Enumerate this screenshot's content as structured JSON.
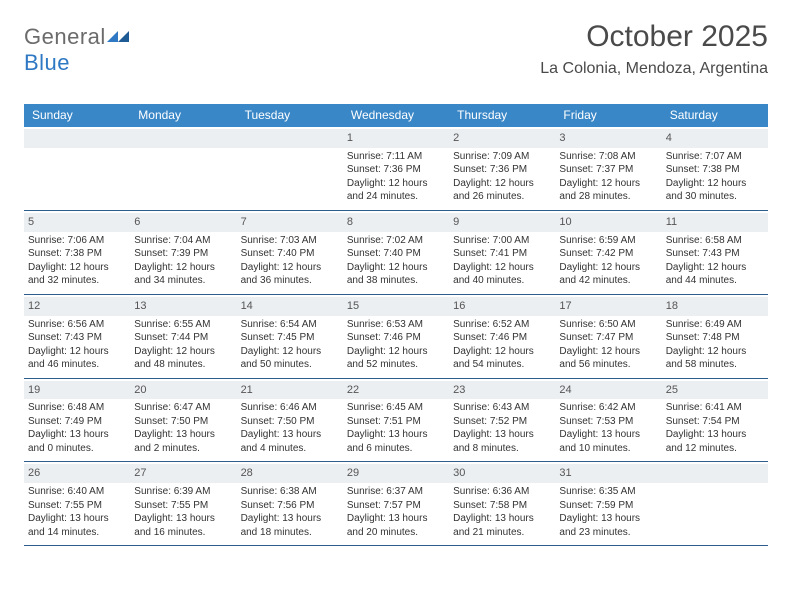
{
  "logo": {
    "text_gray": "General",
    "text_blue": "Blue"
  },
  "header": {
    "title": "October 2025",
    "subtitle": "La Colonia, Mendoza, Argentina"
  },
  "colors": {
    "header_bg": "#3a87c7",
    "header_text": "#ffffff",
    "daynum_bg": "#eceff2",
    "week_border": "#2d5d8a",
    "logo_gray": "#6b6b6b",
    "logo_blue": "#2f78c4"
  },
  "days_of_week": [
    "Sunday",
    "Monday",
    "Tuesday",
    "Wednesday",
    "Thursday",
    "Friday",
    "Saturday"
  ],
  "weeks": [
    [
      {
        "n": "",
        "l": []
      },
      {
        "n": "",
        "l": []
      },
      {
        "n": "",
        "l": []
      },
      {
        "n": "1",
        "l": [
          "Sunrise: 7:11 AM",
          "Sunset: 7:36 PM",
          "Daylight: 12 hours",
          "and 24 minutes."
        ]
      },
      {
        "n": "2",
        "l": [
          "Sunrise: 7:09 AM",
          "Sunset: 7:36 PM",
          "Daylight: 12 hours",
          "and 26 minutes."
        ]
      },
      {
        "n": "3",
        "l": [
          "Sunrise: 7:08 AM",
          "Sunset: 7:37 PM",
          "Daylight: 12 hours",
          "and 28 minutes."
        ]
      },
      {
        "n": "4",
        "l": [
          "Sunrise: 7:07 AM",
          "Sunset: 7:38 PM",
          "Daylight: 12 hours",
          "and 30 minutes."
        ]
      }
    ],
    [
      {
        "n": "5",
        "l": [
          "Sunrise: 7:06 AM",
          "Sunset: 7:38 PM",
          "Daylight: 12 hours",
          "and 32 minutes."
        ]
      },
      {
        "n": "6",
        "l": [
          "Sunrise: 7:04 AM",
          "Sunset: 7:39 PM",
          "Daylight: 12 hours",
          "and 34 minutes."
        ]
      },
      {
        "n": "7",
        "l": [
          "Sunrise: 7:03 AM",
          "Sunset: 7:40 PM",
          "Daylight: 12 hours",
          "and 36 minutes."
        ]
      },
      {
        "n": "8",
        "l": [
          "Sunrise: 7:02 AM",
          "Sunset: 7:40 PM",
          "Daylight: 12 hours",
          "and 38 minutes."
        ]
      },
      {
        "n": "9",
        "l": [
          "Sunrise: 7:00 AM",
          "Sunset: 7:41 PM",
          "Daylight: 12 hours",
          "and 40 minutes."
        ]
      },
      {
        "n": "10",
        "l": [
          "Sunrise: 6:59 AM",
          "Sunset: 7:42 PM",
          "Daylight: 12 hours",
          "and 42 minutes."
        ]
      },
      {
        "n": "11",
        "l": [
          "Sunrise: 6:58 AM",
          "Sunset: 7:43 PM",
          "Daylight: 12 hours",
          "and 44 minutes."
        ]
      }
    ],
    [
      {
        "n": "12",
        "l": [
          "Sunrise: 6:56 AM",
          "Sunset: 7:43 PM",
          "Daylight: 12 hours",
          "and 46 minutes."
        ]
      },
      {
        "n": "13",
        "l": [
          "Sunrise: 6:55 AM",
          "Sunset: 7:44 PM",
          "Daylight: 12 hours",
          "and 48 minutes."
        ]
      },
      {
        "n": "14",
        "l": [
          "Sunrise: 6:54 AM",
          "Sunset: 7:45 PM",
          "Daylight: 12 hours",
          "and 50 minutes."
        ]
      },
      {
        "n": "15",
        "l": [
          "Sunrise: 6:53 AM",
          "Sunset: 7:46 PM",
          "Daylight: 12 hours",
          "and 52 minutes."
        ]
      },
      {
        "n": "16",
        "l": [
          "Sunrise: 6:52 AM",
          "Sunset: 7:46 PM",
          "Daylight: 12 hours",
          "and 54 minutes."
        ]
      },
      {
        "n": "17",
        "l": [
          "Sunrise: 6:50 AM",
          "Sunset: 7:47 PM",
          "Daylight: 12 hours",
          "and 56 minutes."
        ]
      },
      {
        "n": "18",
        "l": [
          "Sunrise: 6:49 AM",
          "Sunset: 7:48 PM",
          "Daylight: 12 hours",
          "and 58 minutes."
        ]
      }
    ],
    [
      {
        "n": "19",
        "l": [
          "Sunrise: 6:48 AM",
          "Sunset: 7:49 PM",
          "Daylight: 13 hours",
          "and 0 minutes."
        ]
      },
      {
        "n": "20",
        "l": [
          "Sunrise: 6:47 AM",
          "Sunset: 7:50 PM",
          "Daylight: 13 hours",
          "and 2 minutes."
        ]
      },
      {
        "n": "21",
        "l": [
          "Sunrise: 6:46 AM",
          "Sunset: 7:50 PM",
          "Daylight: 13 hours",
          "and 4 minutes."
        ]
      },
      {
        "n": "22",
        "l": [
          "Sunrise: 6:45 AM",
          "Sunset: 7:51 PM",
          "Daylight: 13 hours",
          "and 6 minutes."
        ]
      },
      {
        "n": "23",
        "l": [
          "Sunrise: 6:43 AM",
          "Sunset: 7:52 PM",
          "Daylight: 13 hours",
          "and 8 minutes."
        ]
      },
      {
        "n": "24",
        "l": [
          "Sunrise: 6:42 AM",
          "Sunset: 7:53 PM",
          "Daylight: 13 hours",
          "and 10 minutes."
        ]
      },
      {
        "n": "25",
        "l": [
          "Sunrise: 6:41 AM",
          "Sunset: 7:54 PM",
          "Daylight: 13 hours",
          "and 12 minutes."
        ]
      }
    ],
    [
      {
        "n": "26",
        "l": [
          "Sunrise: 6:40 AM",
          "Sunset: 7:55 PM",
          "Daylight: 13 hours",
          "and 14 minutes."
        ]
      },
      {
        "n": "27",
        "l": [
          "Sunrise: 6:39 AM",
          "Sunset: 7:55 PM",
          "Daylight: 13 hours",
          "and 16 minutes."
        ]
      },
      {
        "n": "28",
        "l": [
          "Sunrise: 6:38 AM",
          "Sunset: 7:56 PM",
          "Daylight: 13 hours",
          "and 18 minutes."
        ]
      },
      {
        "n": "29",
        "l": [
          "Sunrise: 6:37 AM",
          "Sunset: 7:57 PM",
          "Daylight: 13 hours",
          "and 20 minutes."
        ]
      },
      {
        "n": "30",
        "l": [
          "Sunrise: 6:36 AM",
          "Sunset: 7:58 PM",
          "Daylight: 13 hours",
          "and 21 minutes."
        ]
      },
      {
        "n": "31",
        "l": [
          "Sunrise: 6:35 AM",
          "Sunset: 7:59 PM",
          "Daylight: 13 hours",
          "and 23 minutes."
        ]
      },
      {
        "n": "",
        "l": []
      }
    ]
  ]
}
